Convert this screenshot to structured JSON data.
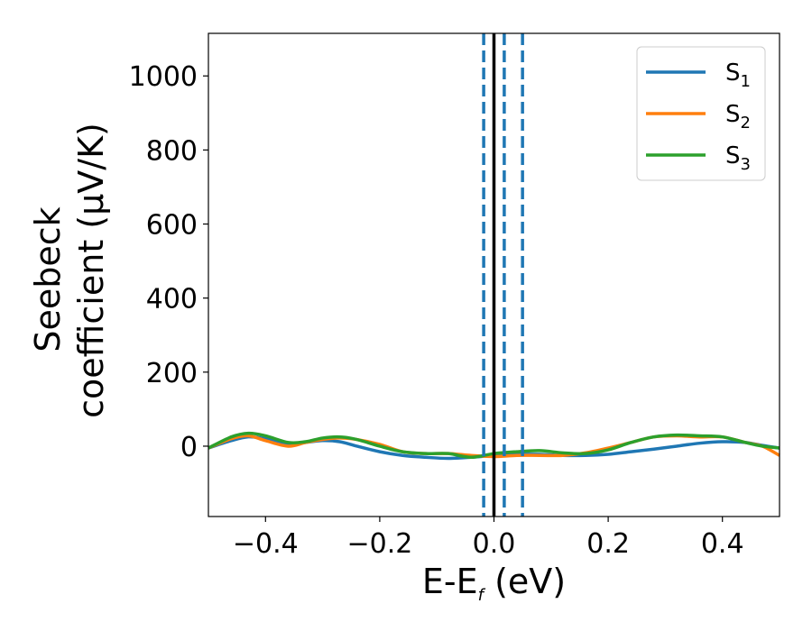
{
  "chart_data": {
    "type": "line",
    "xlabel": {
      "main": "E-E",
      "sub": "f",
      "rest": " (eV)"
    },
    "ylabel": {
      "line1": "Seebeck",
      "line2": "coefficient  (μV/K)"
    },
    "xlim": [
      -0.5,
      0.5
    ],
    "ylim": [
      -190,
      1115
    ],
    "xticks": [
      -0.4,
      -0.2,
      0.0,
      0.2,
      0.4
    ],
    "xtick_labels": [
      "−0.4",
      "−0.2",
      "0.0",
      "0.2",
      "0.4"
    ],
    "yticks": [
      0,
      200,
      400,
      600,
      800,
      1000
    ],
    "ytick_labels": [
      "0",
      "200",
      "400",
      "600",
      "800",
      "1000"
    ],
    "grid": false,
    "legend_position": "top-right",
    "vertical_lines": [
      {
        "x": 0.0,
        "style": "solid",
        "color": "#000000"
      },
      {
        "x": -0.018,
        "style": "dashed",
        "color": "#1f77b4"
      },
      {
        "x": 0.018,
        "style": "dashed",
        "color": "#1f77b4"
      },
      {
        "x": 0.05,
        "style": "dashed",
        "color": "#1f77b4"
      }
    ],
    "series": [
      {
        "name": "S",
        "sub": "1",
        "color": "#1f77b4",
        "x": [
          -0.5,
          -0.46,
          -0.43,
          -0.4,
          -0.36,
          -0.33,
          -0.3,
          -0.27,
          -0.24,
          -0.2,
          -0.16,
          -0.12,
          -0.08,
          -0.04,
          0.0,
          0.04,
          0.08,
          0.12,
          0.16,
          0.2,
          0.24,
          0.28,
          0.32,
          0.36,
          0.4,
          0.44,
          0.47,
          0.5
        ],
        "y": [
          -5,
          15,
          25,
          20,
          5,
          10,
          15,
          12,
          0,
          -15,
          -25,
          -30,
          -33,
          -30,
          -25,
          -22,
          -22,
          -25,
          -25,
          -22,
          -15,
          -8,
          0,
          8,
          12,
          10,
          2,
          -5
        ]
      },
      {
        "name": "S",
        "sub": "2",
        "color": "#ff7f0e",
        "x": [
          -0.5,
          -0.46,
          -0.43,
          -0.4,
          -0.36,
          -0.33,
          -0.3,
          -0.27,
          -0.24,
          -0.2,
          -0.16,
          -0.12,
          -0.08,
          -0.04,
          0.0,
          0.04,
          0.08,
          0.12,
          0.16,
          0.2,
          0.24,
          0.28,
          0.32,
          0.36,
          0.4,
          0.44,
          0.47,
          0.5
        ],
        "y": [
          -5,
          20,
          28,
          15,
          0,
          10,
          18,
          22,
          18,
          5,
          -15,
          -20,
          -20,
          -25,
          -28,
          -25,
          -25,
          -25,
          -18,
          -5,
          10,
          25,
          28,
          25,
          25,
          10,
          0,
          -25
        ]
      },
      {
        "name": "S",
        "sub": "3",
        "color": "#2ca02c",
        "x": [
          -0.5,
          -0.46,
          -0.43,
          -0.4,
          -0.36,
          -0.33,
          -0.3,
          -0.27,
          -0.24,
          -0.2,
          -0.16,
          -0.12,
          -0.08,
          -0.04,
          0.0,
          0.04,
          0.08,
          0.12,
          0.16,
          0.2,
          0.24,
          0.28,
          0.32,
          0.36,
          0.4,
          0.44,
          0.47,
          0.5
        ],
        "y": [
          -5,
          25,
          35,
          28,
          10,
          12,
          22,
          25,
          18,
          0,
          -15,
          -20,
          -20,
          -30,
          -20,
          -15,
          -12,
          -18,
          -20,
          -10,
          10,
          25,
          30,
          28,
          25,
          10,
          0,
          -5
        ]
      }
    ]
  }
}
